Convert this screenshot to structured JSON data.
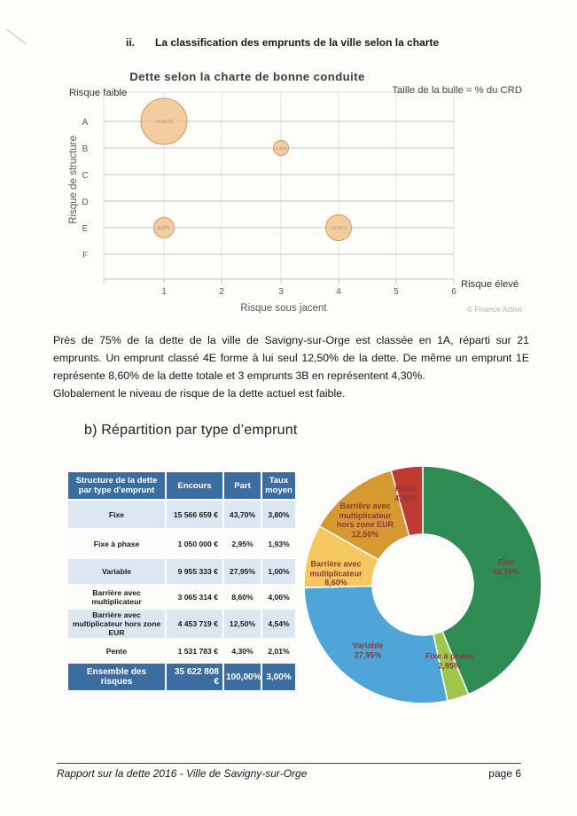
{
  "page": {
    "heading_number": "ii.",
    "heading_title": "La classification des emprunts de la ville selon la charte",
    "paragraph1": "Près de 75% de la dette de la ville de Savigny-sur-Orge est classée en 1A, réparti sur 21 emprunts. Un emprunt classé 4E forme à lui seul 12,50% de la dette. De même un emprunt 1E représente 8,60% de la dette totale et 3 emprunts 3B en représentent 4,30%.",
    "paragraph2": "Globalement le niveau de risque de la dette actuel est faible.",
    "section_b_title": "b) Répartition par type d’emprunt",
    "footer_left": "Rapport sur la dette 2016 - Ville de Savigny-sur-Orge",
    "footer_right": "page 6"
  },
  "table": {
    "headers": [
      "Structure de la dette par type d'emprunt",
      "Encours",
      "Part",
      "Taux moyen"
    ],
    "rows": [
      [
        "Fixe",
        "15 566 659 €",
        "43,70%",
        "3,80%"
      ],
      [
        "Fixe à phase",
        "1 050 000 €",
        "2,95%",
        "1,93%"
      ],
      [
        "Variable",
        "9 955 333 €",
        "27,95%",
        "1,00%"
      ],
      [
        "Barrière avec multiplicateur",
        "3 065 314 €",
        "8,60%",
        "4,06%"
      ],
      [
        "Barrière avec multiplicateur hors zone EUR",
        "4 453 719 €",
        "12,50%",
        "4,54%"
      ],
      [
        "Pente",
        "1 531 783 €",
        "4,30%",
        "2,01%"
      ]
    ],
    "total": [
      "Ensemble des risques",
      "35 622 808 €",
      "100,00%",
      "3,00%"
    ],
    "header_bg": "#3c6da0",
    "stripe_bg": "#dce6f1"
  },
  "chart_data": [
    {
      "type": "scatter",
      "subtype": "bubble",
      "title": "Dette selon la charte de bonne conduite",
      "size_note": "Taille de la bulle = % du CRD",
      "xlabel": "Risque sous jacent",
      "ylabel": "Risque de structure",
      "corner_low": "Risque faible",
      "corner_high": "Risque élevé",
      "credit": "© Finance Active",
      "x_ticks": [
        "1",
        "2",
        "3",
        "4",
        "5",
        "6"
      ],
      "y_ticks": [
        "A",
        "B",
        "C",
        "D",
        "E",
        "F"
      ],
      "grid": true,
      "points": [
        {
          "x": 1,
          "y": "A",
          "size_value": 74.6,
          "size_pct": "74,60%"
        },
        {
          "x": 3,
          "y": "B",
          "size_value": 4.3,
          "size_pct": "4,30%"
        },
        {
          "x": 1,
          "y": "E",
          "size_value": 8.6,
          "size_pct": "8,60%"
        },
        {
          "x": 4,
          "y": "E",
          "size_value": 12.5,
          "size_pct": "12,50%"
        }
      ],
      "bubble_color": "#f2c795",
      "bubble_border": "#d59a5b"
    },
    {
      "type": "pie",
      "subtype": "donut",
      "legend_position": "none",
      "label_color": "#8a3b3e",
      "segments": [
        {
          "label": "Fixe",
          "value": 43.7,
          "pct_label": "43,70%",
          "color": "#2e8b52",
          "lines": [
            "Fixe",
            "43,70%"
          ]
        },
        {
          "label": "Fixe à phase",
          "value": 2.95,
          "pct_label": "2,95%",
          "color": "#9fc74d",
          "lines": [
            "Fixe à phase",
            "2,95%"
          ]
        },
        {
          "label": "Variable",
          "value": 27.95,
          "pct_label": "27,95%",
          "color": "#4fa5d8",
          "lines": [
            "Variable",
            "27,95%"
          ]
        },
        {
          "label": "Barrière avec multiplicateur",
          "value": 8.6,
          "pct_label": "8,60%",
          "color": "#f6c75f",
          "lines": [
            "Barrière avec",
            "multiplicateur",
            "8,60%"
          ]
        },
        {
          "label": "Barrière avec multiplicateur hors zone EUR",
          "value": 12.5,
          "pct_label": "12,50%",
          "color": "#d6992f",
          "lines": [
            "Barrière avec",
            "multiplicateur",
            "hors zone EUR",
            "12,50%"
          ]
        },
        {
          "label": "Pente",
          "value": 4.3,
          "pct_label": "4,30%",
          "color": "#c03a31",
          "lines": [
            "Pente",
            "4,30%"
          ]
        }
      ]
    }
  ]
}
